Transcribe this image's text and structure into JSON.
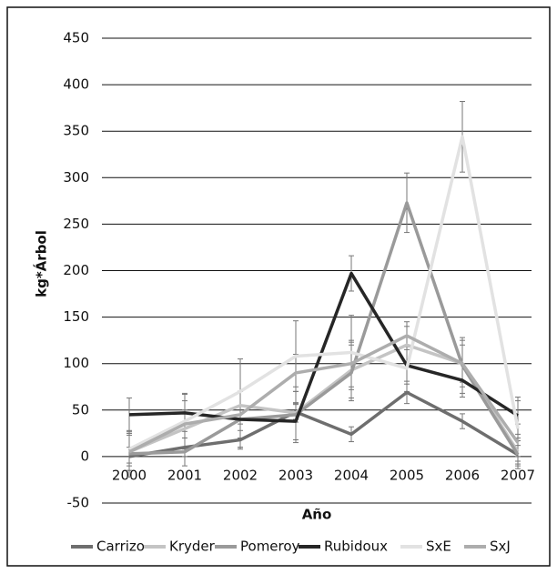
{
  "chart_data": {
    "type": "line",
    "x_label": "Año",
    "y_label": "kg*Árbol",
    "categories": [
      "2000",
      "2001",
      "2002",
      "2003",
      "2004",
      "2005",
      "2006",
      "2007"
    ],
    "ylim": [
      -50,
      450
    ],
    "yticks": [
      -50,
      0,
      50,
      100,
      150,
      200,
      250,
      300,
      350,
      400,
      450
    ],
    "grid": true,
    "series": [
      {
        "name": "Carrizo",
        "color": "#6e6e6e",
        "values": [
          0,
          10,
          18,
          48,
          24,
          69,
          38,
          2
        ],
        "errors": [
          10,
          10,
          10,
          8,
          8,
          12,
          8,
          10
        ]
      },
      {
        "name": "Kryder",
        "color": "#c4c4c4",
        "values": [
          5,
          30,
          55,
          47,
          93,
          120,
          100,
          5
        ],
        "errors": [
          20,
          20,
          15,
          10,
          30,
          20,
          20,
          15
        ]
      },
      {
        "name": "Pomeroy",
        "color": "#9a9a9a",
        "values": [
          3,
          5,
          40,
          45,
          90,
          273,
          98,
          2
        ],
        "errors": [
          25,
          15,
          30,
          30,
          30,
          32,
          30,
          15
        ]
      },
      {
        "name": "Rubidoux",
        "color": "#262626",
        "values": [
          45,
          47,
          40,
          38,
          197,
          98,
          82,
          44
        ],
        "errors": [
          18,
          20,
          30,
          20,
          19,
          20,
          18,
          20
        ]
      },
      {
        "name": "SxE",
        "color": "#e2e2e2",
        "values": [
          8,
          38,
          70,
          108,
          112,
          95,
          344,
          30
        ],
        "errors": [
          15,
          30,
          35,
          38,
          40,
          25,
          38,
          30
        ]
      },
      {
        "name": "SxJ",
        "color": "#adadad",
        "values": [
          5,
          35,
          45,
          90,
          100,
          130,
          100,
          15
        ],
        "errors": [
          20,
          25,
          25,
          20,
          25,
          15,
          25,
          20
        ]
      }
    ]
  }
}
